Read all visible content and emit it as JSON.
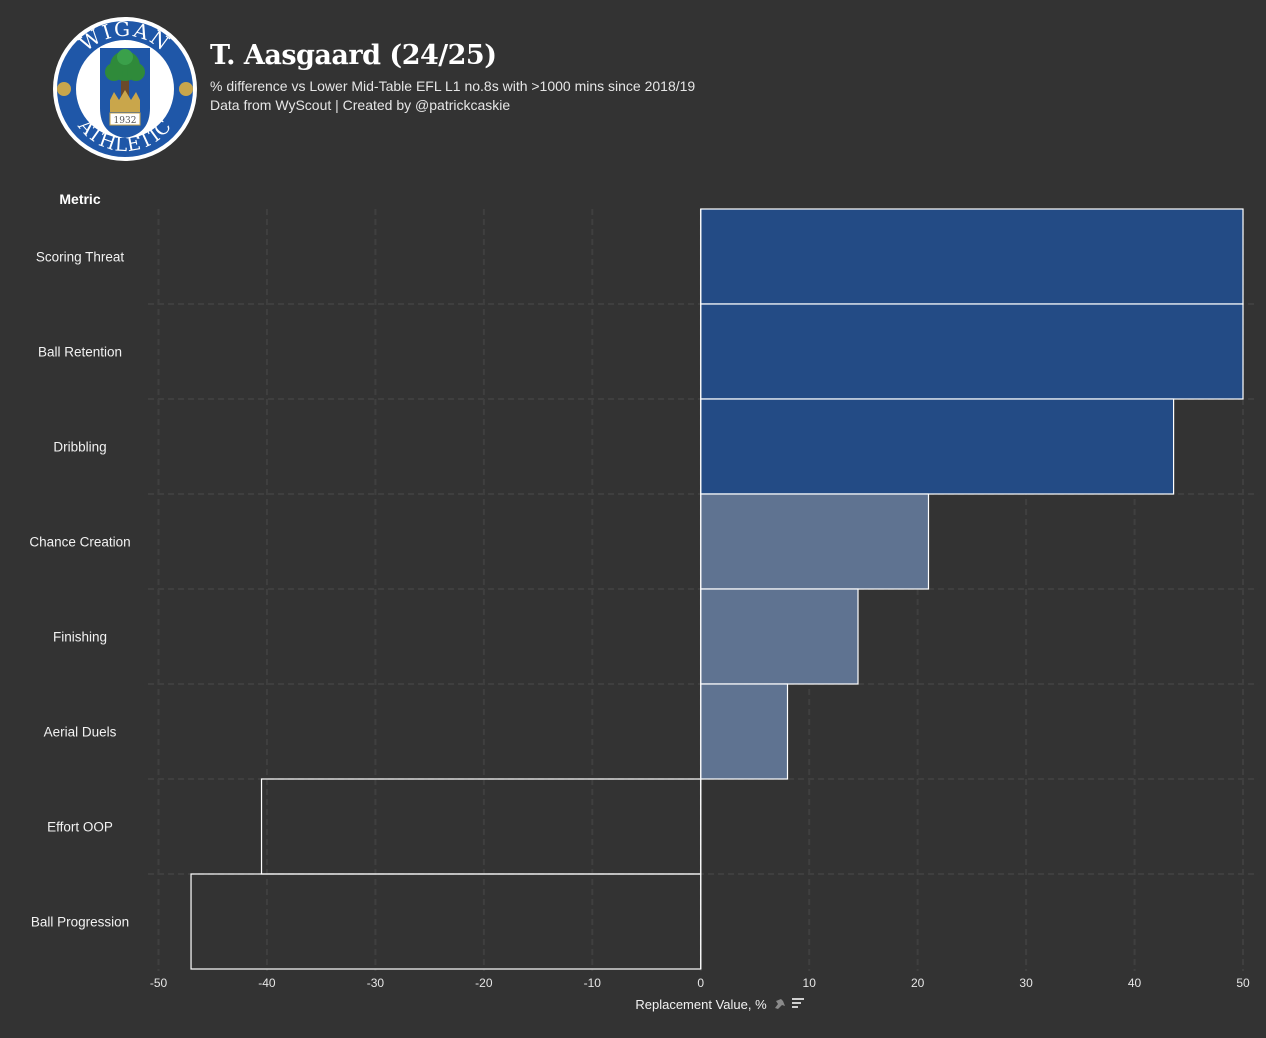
{
  "header": {
    "title": "T. Aasgaard (24/25)",
    "subtitle": "% difference vs Lower Mid-Table EFL L1 no.8s with >1000 mins since 2018/19",
    "credit": "Data from WyScout | Created by @patrickcaskie"
  },
  "logo": {
    "top_text": "WIGAN",
    "bottom_text": "ATHLETIC",
    "year": "1932",
    "colors": {
      "ring": "#1f57a8",
      "tree": "#2f8a3a",
      "crown": "#c9a64b",
      "white": "#ffffff"
    }
  },
  "colors": {
    "background": "#333333",
    "strong_positive": "#234b85",
    "mild_positive": "#5f7391",
    "bar_outline": "#ffffff",
    "grid": "#3f3f3f"
  },
  "chart_data": {
    "type": "bar",
    "orientation": "horizontal",
    "categories": [
      "Scoring Threat",
      "Ball Retention",
      "Dribbling",
      "Chance Creation",
      "Finishing",
      "Aerial Duels",
      "Effort OOP",
      "Ball Progression"
    ],
    "values": [
      50,
      50,
      43.6,
      21,
      14.5,
      8,
      -40.5,
      -47
    ],
    "tiers": [
      "strong",
      "strong",
      "strong",
      "mild",
      "mild",
      "mild",
      "negative",
      "negative"
    ],
    "category_axis_title": "Metric",
    "xlabel": "Replacement Value, %",
    "xlim": [
      -50,
      50
    ],
    "xticks": [
      -50,
      -40,
      -30,
      -20,
      -10,
      0,
      10,
      20,
      30,
      40,
      50
    ],
    "grid": true
  }
}
